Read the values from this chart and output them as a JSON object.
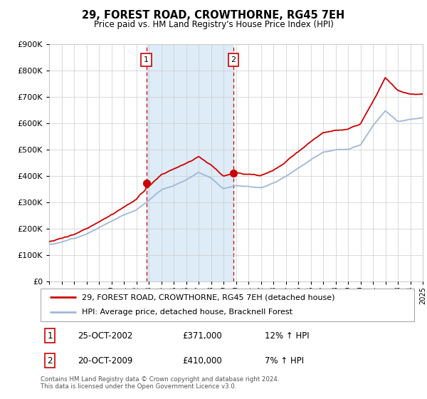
{
  "title": "29, FOREST ROAD, CROWTHORNE, RG45 7EH",
  "subtitle": "Price paid vs. HM Land Registry's House Price Index (HPI)",
  "legend_line1": "29, FOREST ROAD, CROWTHORNE, RG45 7EH (detached house)",
  "legend_line2": "HPI: Average price, detached house, Bracknell Forest",
  "sale1_label": "1",
  "sale1_date": "25-OCT-2002",
  "sale1_price": "£371,000",
  "sale1_hpi": "12% ↑ HPI",
  "sale1_year": 2002.8,
  "sale1_value": 371000,
  "sale2_label": "2",
  "sale2_date": "20-OCT-2009",
  "sale2_price": "£410,000",
  "sale2_hpi": "7% ↑ HPI",
  "sale2_year": 2009.8,
  "sale2_value": 410000,
  "footer": "Contains HM Land Registry data © Crown copyright and database right 2024.\nThis data is licensed under the Open Government Licence v3.0.",
  "hpi_color": "#a0b8d8",
  "price_color": "#cc0000",
  "sale_dot_color": "#cc0000",
  "background_color": "#ffffff",
  "shade_color": "#daeaf7",
  "ylim_min": 0,
  "ylim_max": 900000,
  "xlim_min": 1995,
  "xlim_max": 2025,
  "hpi_base_values": [
    140000,
    148000,
    163000,
    182000,
    205000,
    228000,
    252000,
    272000,
    310000,
    348000,
    365000,
    385000,
    415000,
    395000,
    355000,
    370000,
    365000,
    362000,
    378000,
    405000,
    438000,
    468000,
    498000,
    505000,
    505000,
    520000,
    590000,
    645000,
    605000,
    615000,
    620000
  ],
  "price_base_values": [
    150000,
    160000,
    178000,
    200000,
    225000,
    255000,
    285000,
    315000,
    360000,
    405000,
    425000,
    445000,
    475000,
    445000,
    400000,
    418000,
    415000,
    412000,
    428000,
    460000,
    498000,
    535000,
    568000,
    580000,
    582000,
    598000,
    685000,
    780000,
    730000,
    715000,
    710000
  ]
}
